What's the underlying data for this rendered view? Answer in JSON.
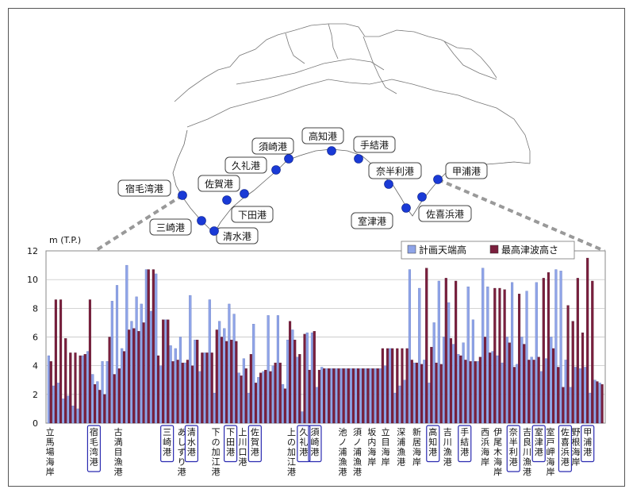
{
  "ports": [
    {
      "name": "宿毛湾港"
    },
    {
      "name": "三崎港"
    },
    {
      "name": "清水港"
    },
    {
      "name": "佐賀港"
    },
    {
      "name": "下田港"
    },
    {
      "name": "久礼港"
    },
    {
      "name": "須崎港"
    },
    {
      "name": "高知港"
    },
    {
      "name": "手結港"
    },
    {
      "name": "奈半利港"
    },
    {
      "name": "室津港"
    },
    {
      "name": "佐喜浜港"
    },
    {
      "name": "甲浦港"
    }
  ],
  "chart_data": {
    "type": "bar",
    "ylabel": "m (T.P.)",
    "ylim": [
      0,
      12
    ],
    "yticks": [
      "0",
      "2",
      "4",
      "6",
      "8",
      "10",
      "12"
    ],
    "grid": true,
    "legend_position": "top-right",
    "series": [
      {
        "name": "計画天端高",
        "color": "#8fa4e8"
      },
      {
        "name": "最高津波高さ",
        "color": "#7a1f3d"
      }
    ],
    "pairs": [
      [
        4.7,
        4.3
      ],
      [
        2.6,
        8.6
      ],
      [
        2.8,
        8.6
      ],
      [
        1.7,
        5.9
      ],
      [
        1.9,
        4.9
      ],
      [
        1.2,
        4.9
      ],
      [
        1.0,
        4.7
      ],
      [
        4.7,
        4.8
      ],
      [
        5.0,
        8.6
      ],
      [
        3.4,
        2.7
      ],
      [
        2.9,
        2.3
      ],
      [
        4.3,
        2.0
      ],
      [
        4.3,
        6.0
      ],
      [
        8.5,
        3.4
      ],
      [
        9.6,
        3.8
      ],
      [
        5.2,
        5.0
      ],
      [
        11.0,
        6.5
      ],
      [
        7.1,
        6.6
      ],
      [
        8.8,
        6.4
      ],
      [
        8.3,
        7.0
      ],
      [
        10.7,
        10.7
      ],
      [
        7.8,
        10.7
      ],
      [
        10.4,
        4.7
      ],
      [
        4.0,
        7.2
      ],
      [
        7.2,
        7.2
      ],
      [
        5.4,
        4.3
      ],
      [
        5.2,
        4.4
      ],
      [
        6.0,
        4.2
      ],
      [
        4.2,
        4.4
      ],
      [
        8.9,
        4.0
      ],
      [
        5.8,
        5.8
      ],
      [
        3.6,
        4.9
      ],
      [
        4.9,
        4.9
      ],
      [
        8.6,
        4.9
      ],
      [
        2.1,
        6.5
      ],
      [
        7.1,
        6.0
      ],
      [
        6.6,
        5.7
      ],
      [
        8.3,
        5.8
      ],
      [
        7.6,
        5.7
      ],
      [
        3.5,
        3.3
      ],
      [
        4.5,
        3.8
      ],
      [
        2.1,
        4.8
      ],
      [
        6.9,
        2.8
      ],
      [
        3.2,
        3.5
      ],
      [
        3.6,
        3.7
      ],
      [
        7.5,
        3.6
      ],
      [
        4.0,
        4.2
      ],
      [
        7.5,
        4.2
      ],
      [
        2.7,
        2.4
      ],
      [
        5.8,
        7.1
      ],
      [
        6.5,
        5.8
      ],
      [
        4.6,
        4.8
      ],
      [
        0.8,
        6.2
      ],
      [
        6.3,
        3.7
      ],
      [
        6.3,
        6.4
      ],
      [
        2.5,
        3.7
      ],
      [
        3.9,
        3.8
      ],
      [
        3.8,
        3.8
      ],
      [
        3.8,
        3.8
      ],
      [
        3.8,
        3.8
      ],
      [
        3.8,
        3.8
      ],
      [
        3.8,
        3.8
      ],
      [
        3.8,
        3.8
      ],
      [
        3.8,
        3.8
      ],
      [
        3.8,
        3.8
      ],
      [
        3.8,
        3.8
      ],
      [
        3.8,
        3.8
      ],
      [
        3.8,
        3.8
      ],
      [
        3.8,
        5.2
      ],
      [
        4.0,
        5.2
      ],
      [
        5.2,
        5.2
      ],
      [
        2.1,
        5.2
      ],
      [
        2.6,
        5.2
      ],
      [
        3.0,
        5.2
      ],
      [
        10.7,
        4.4
      ],
      [
        4.2,
        4.2
      ],
      [
        9.4,
        4.1
      ],
      [
        4.4,
        10.8
      ],
      [
        2.8,
        5.3
      ],
      [
        7.0,
        4.2
      ],
      [
        9.9,
        4.1
      ],
      [
        6.0,
        10.1
      ],
      [
        8.4,
        5.9
      ],
      [
        5.5,
        9.9
      ],
      [
        4.8,
        4.7
      ],
      [
        5.6,
        4.4
      ],
      [
        9.5,
        4.3
      ],
      [
        7.2,
        4.3
      ],
      [
        4.3,
        4.6
      ],
      [
        10.8,
        6.0
      ],
      [
        9.5,
        4.9
      ],
      [
        5.0,
        9.4
      ],
      [
        4.7,
        9.4
      ],
      [
        4.2,
        9.3
      ],
      [
        6.0,
        5.6
      ],
      [
        9.8,
        3.9
      ],
      [
        4.1,
        9.0
      ],
      [
        6.0,
        5.5
      ],
      [
        9.2,
        4.4
      ],
      [
        4.6,
        4.4
      ],
      [
        9.8,
        4.6
      ],
      [
        3.6,
        10.1
      ],
      [
        4.5,
        10.5
      ],
      [
        6.0,
        5.2
      ],
      [
        10.7,
        3.9
      ],
      [
        10.6,
        2.5
      ],
      [
        4.4,
        8.2
      ],
      [
        2.5,
        7.1
      ],
      [
        3.9,
        10.1
      ],
      [
        3.8,
        6.3
      ],
      [
        3.9,
        11.5
      ],
      [
        2.1,
        9.9
      ],
      [
        3.0,
        2.9
      ],
      [
        2.8,
        2.7
      ]
    ],
    "category_labels": [
      {
        "text": "立馬場海岸",
        "pos": 0,
        "boxed": false
      },
      {
        "text": "宿毛湾港",
        "pos": 9,
        "boxed": true
      },
      {
        "text": "古満目漁港",
        "pos": 14,
        "boxed": false
      },
      {
        "text": "三崎港",
        "pos": 24,
        "boxed": true
      },
      {
        "text": "あしずり港",
        "pos": 27,
        "boxed": false
      },
      {
        "text": "清水港",
        "pos": 29,
        "boxed": true
      },
      {
        "text": "下の加江港",
        "pos": 34,
        "boxed": false
      },
      {
        "text": "下田港",
        "pos": 37,
        "boxed": true
      },
      {
        "text": "上川口港",
        "pos": 39.5,
        "boxed": false
      },
      {
        "text": "佐賀港",
        "pos": 42,
        "boxed": true
      },
      {
        "text": "上の加江港",
        "pos": 49.5,
        "boxed": false
      },
      {
        "text": "久礼港",
        "pos": 52,
        "boxed": true
      },
      {
        "text": "須崎港",
        "pos": 54.3,
        "boxed": true
      },
      {
        "text": "池ノ浦漁港",
        "pos": 60,
        "boxed": false
      },
      {
        "text": "須ノ浦漁港",
        "pos": 63,
        "boxed": false
      },
      {
        "text": "坂内海岸",
        "pos": 66,
        "boxed": false
      },
      {
        "text": "立目海岸",
        "pos": 68.8,
        "boxed": false
      },
      {
        "text": "深浦漁港",
        "pos": 72,
        "boxed": false
      },
      {
        "text": "新居海岸",
        "pos": 75.2,
        "boxed": false
      },
      {
        "text": "高知港",
        "pos": 78.5,
        "boxed": true
      },
      {
        "text": "吉川漁港",
        "pos": 81.5,
        "boxed": false
      },
      {
        "text": "手結港",
        "pos": 85,
        "boxed": true
      },
      {
        "text": "西浜海岸",
        "pos": 89.2,
        "boxed": false
      },
      {
        "text": "伊尾木海岸",
        "pos": 91.8,
        "boxed": false
      },
      {
        "text": "奈半利港",
        "pos": 95,
        "boxed": true
      },
      {
        "text": "吉良川漁港",
        "pos": 97.8,
        "boxed": false
      },
      {
        "text": "室津港",
        "pos": 100.2,
        "boxed": true
      },
      {
        "text": "室戸岬海岸",
        "pos": 102.6,
        "boxed": false
      },
      {
        "text": "佐喜浜港",
        "pos": 105.6,
        "boxed": true
      },
      {
        "text": "野根海岸",
        "pos": 107.8,
        "boxed": false
      },
      {
        "text": "甲浦港",
        "pos": 110.2,
        "boxed": true
      }
    ]
  }
}
